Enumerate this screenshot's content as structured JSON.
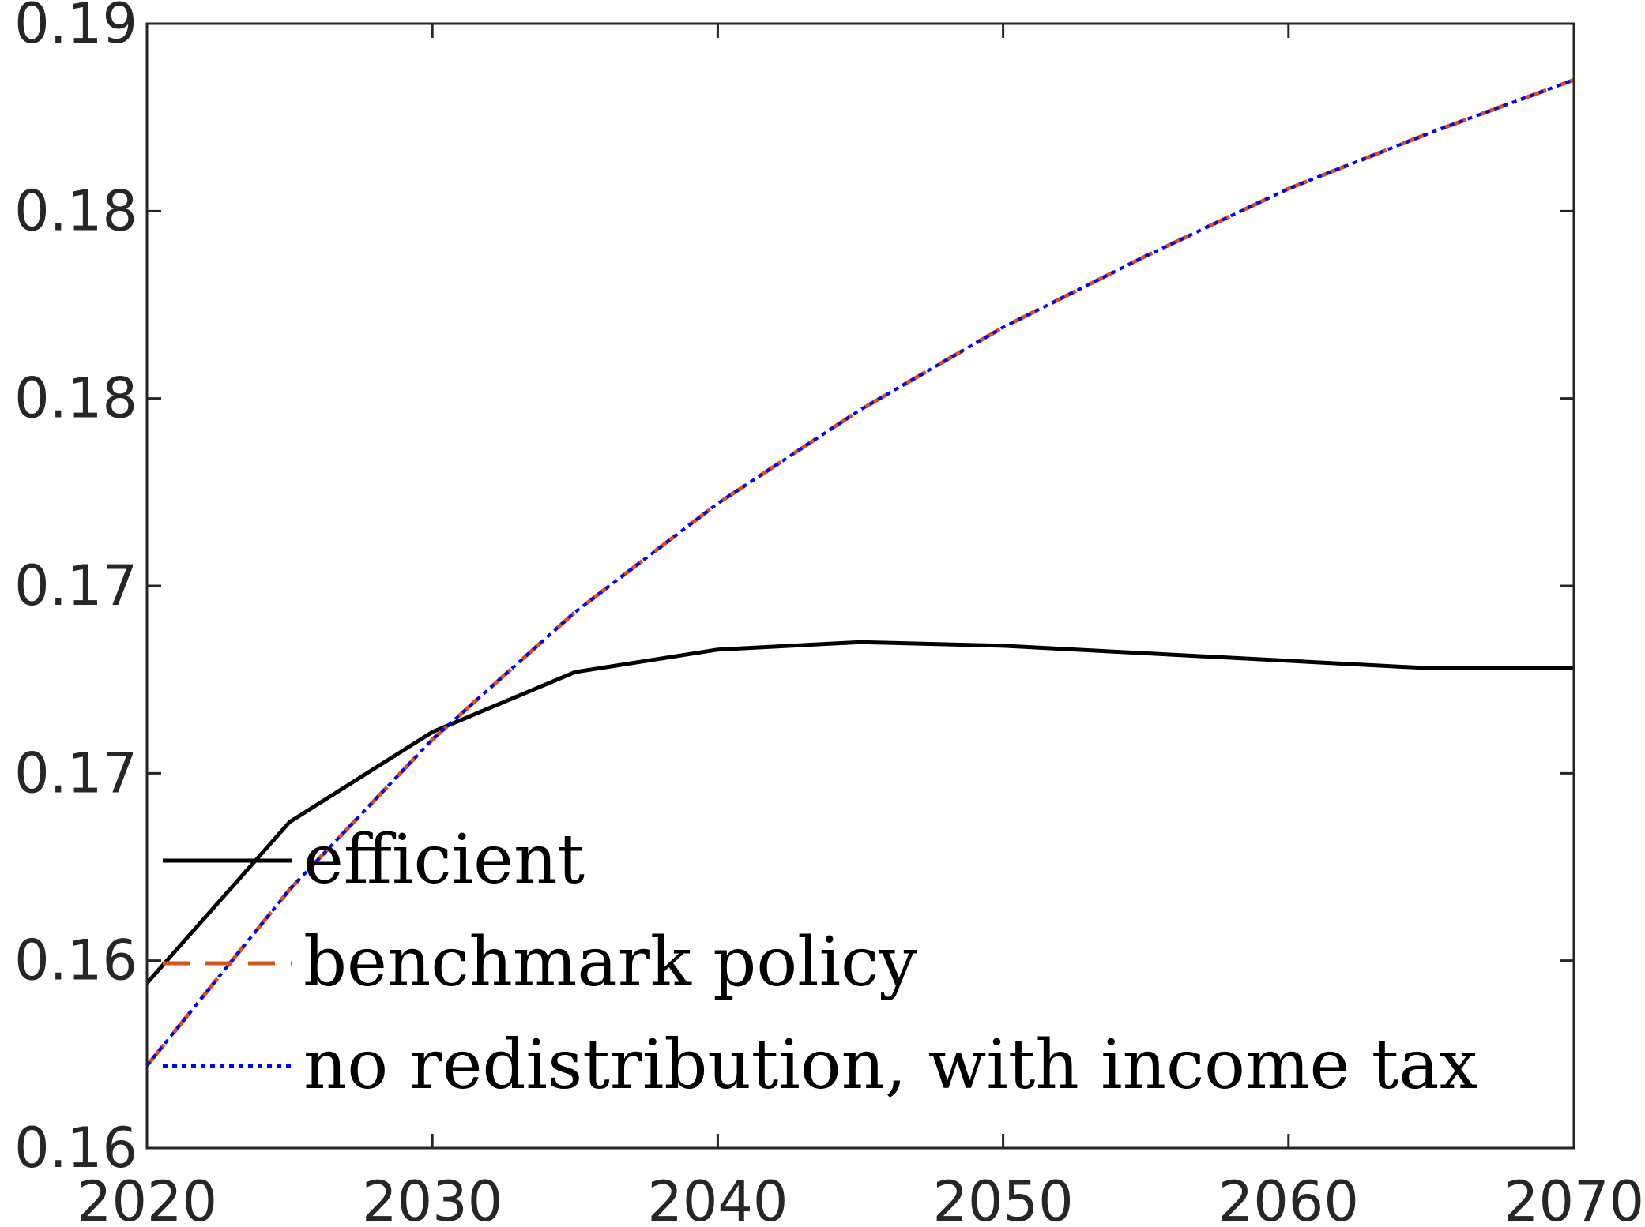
{
  "chart_data": {
    "type": "line",
    "title": "",
    "xlabel": "",
    "ylabel": "",
    "xlim": [
      2020,
      2070
    ],
    "ylim": [
      0.16,
      0.19
    ],
    "x_ticks": [
      2020,
      2030,
      2040,
      2050,
      2060,
      2070
    ],
    "x_tick_labels": [
      "2020",
      "2030",
      "2040",
      "2050",
      "2060",
      "2070"
    ],
    "y_ticks": [
      0.16,
      0.165,
      0.17,
      0.175,
      0.18,
      0.185,
      0.19
    ],
    "y_tick_labels": [
      "0.16",
      "0.16",
      "0.17",
      "0.17",
      "0.18",
      "0.18",
      "0.19"
    ],
    "grid": false,
    "legend_position": "lower-left",
    "series": [
      {
        "name": "efficient",
        "color": "#000000",
        "style": "solid",
        "x": [
          2020,
          2025,
          2030,
          2035,
          2040,
          2045,
          2050,
          2055,
          2060,
          2065,
          2070
        ],
        "y": [
          0.1644,
          0.1687,
          0.1711,
          0.1727,
          0.1733,
          0.1735,
          0.1734,
          0.1732,
          0.173,
          0.1728,
          0.1728
        ]
      },
      {
        "name": "benchmark policy",
        "color": "#D95319",
        "style": "dashed",
        "x": [
          2020,
          2025,
          2030,
          2035,
          2040,
          2045,
          2050,
          2055,
          2060,
          2065,
          2070
        ],
        "y": [
          0.1622,
          0.1669,
          0.1709,
          0.1743,
          0.1772,
          0.1797,
          0.1819,
          0.1838,
          0.1856,
          0.1871,
          0.1885
        ]
      },
      {
        "name": "no redistribution, with income tax",
        "color": "#0000FF",
        "style": "dotted",
        "x": [
          2020,
          2025,
          2030,
          2035,
          2040,
          2045,
          2050,
          2055,
          2060,
          2065,
          2070
        ],
        "y": [
          0.1622,
          0.1669,
          0.1709,
          0.1743,
          0.1772,
          0.1797,
          0.1819,
          0.1838,
          0.1856,
          0.1871,
          0.1885
        ]
      }
    ]
  }
}
